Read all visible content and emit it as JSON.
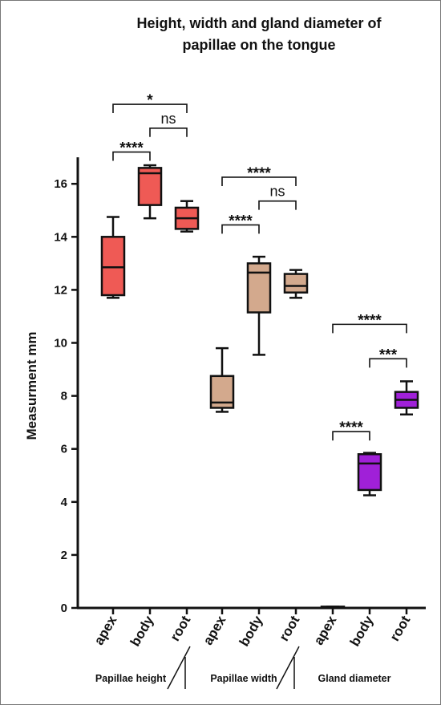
{
  "chart_data": {
    "type": "box",
    "title_lines": [
      "Height, width and gland diameter of",
      "papillae on the tongue"
    ],
    "ylabel": "Measurment mm",
    "ylim": [
      0,
      17
    ],
    "yticks": [
      0,
      2,
      4,
      6,
      8,
      10,
      12,
      14,
      16
    ],
    "groups": [
      {
        "name": "Papillae height",
        "color": "#ef5a55",
        "boxes": [
          {
            "label": "apex",
            "min": 11.7,
            "q1": 11.8,
            "median": 12.85,
            "q3": 14.0,
            "max": 14.75
          },
          {
            "label": "body",
            "min": 14.7,
            "q1": 15.2,
            "median": 16.4,
            "q3": 16.6,
            "max": 16.7
          },
          {
            "label": "root",
            "min": 14.2,
            "q1": 14.3,
            "median": 14.7,
            "q3": 15.1,
            "max": 15.35
          }
        ],
        "comparisons": [
          {
            "from": 0,
            "to": 2,
            "label": "*",
            "y": 19.0
          },
          {
            "from": 1,
            "to": 2,
            "label": "ns",
            "y": 18.1
          },
          {
            "from": 0,
            "to": 1,
            "label": "****",
            "y": 17.2
          }
        ]
      },
      {
        "name": "Papillae width",
        "color": "#d3a98d",
        "boxes": [
          {
            "label": "apex",
            "min": 7.4,
            "q1": 7.55,
            "median": 7.75,
            "q3": 8.75,
            "max": 9.8
          },
          {
            "label": "body",
            "min": 9.55,
            "q1": 11.15,
            "median": 12.65,
            "q3": 13.0,
            "max": 13.25
          },
          {
            "label": "root",
            "min": 11.7,
            "q1": 11.9,
            "median": 12.15,
            "q3": 12.6,
            "max": 12.75
          }
        ],
        "comparisons": [
          {
            "from": 0,
            "to": 2,
            "label": "****",
            "y": 16.25
          },
          {
            "from": 1,
            "to": 2,
            "label": "ns",
            "y": 15.35
          },
          {
            "from": 0,
            "to": 1,
            "label": "****",
            "y": 14.45
          }
        ]
      },
      {
        "name": "Gland diameter",
        "color": "#a020d8",
        "boxes": [
          {
            "label": "apex",
            "min": 0,
            "q1": 0,
            "median": 0,
            "q3": 0.05,
            "max": 0.05
          },
          {
            "label": "body",
            "min": 4.25,
            "q1": 4.45,
            "median": 5.45,
            "q3": 5.8,
            "max": 5.85
          },
          {
            "label": "root",
            "min": 7.3,
            "q1": 7.55,
            "median": 7.85,
            "q3": 8.15,
            "max": 8.55
          }
        ],
        "comparisons": [
          {
            "from": 0,
            "to": 2,
            "label": "****",
            "y": 10.7
          },
          {
            "from": 1,
            "to": 2,
            "label": "***",
            "y": 9.4
          },
          {
            "from": 0,
            "to": 1,
            "label": "****",
            "y": 6.65
          }
        ]
      }
    ]
  }
}
